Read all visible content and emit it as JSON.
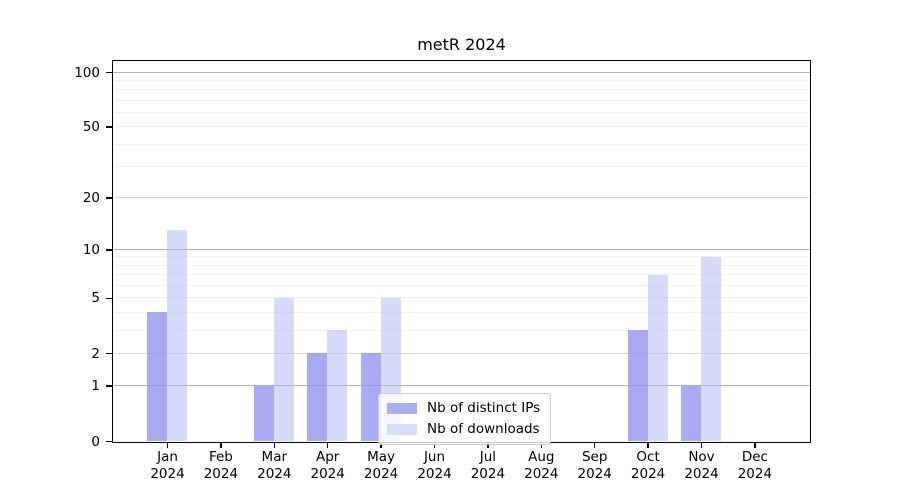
{
  "chart_data": {
    "type": "bar",
    "title": "metR 2024",
    "year": "2024",
    "categories": [
      "Jan",
      "Feb",
      "Mar",
      "Apr",
      "May",
      "Jun",
      "Jul",
      "Aug",
      "Sep",
      "Oct",
      "Nov",
      "Dec"
    ],
    "series": [
      {
        "name": "Nb of distinct IPs",
        "color": "#aaabf2",
        "bar_rgba": "rgba(150,151,238,0.82)",
        "values": [
          4,
          0,
          1,
          2,
          2,
          0,
          0,
          0,
          0,
          3,
          1,
          0
        ]
      },
      {
        "name": "Nb of downloads",
        "color": "#d9dbf9",
        "bar_rgba": "rgba(178,181,243,0.5)",
        "values": [
          13,
          0,
          5,
          3,
          5,
          0,
          0,
          0,
          0,
          7,
          9,
          0
        ]
      }
    ],
    "xlabel": "",
    "ylabel": "",
    "yscale": "log1p",
    "ylim": [
      0,
      115
    ],
    "yticks": [
      0,
      1,
      2,
      5,
      10,
      20,
      50,
      100
    ],
    "yticks_minor": [
      3,
      4,
      6,
      7,
      8,
      9,
      30,
      40,
      60,
      70,
      80,
      90
    ],
    "grid": "horizontal",
    "legend_position": "lower-center-inside",
    "gridline_colors": {
      "strong": "#b2b2b2",
      "medium": "#d8d8d8",
      "light": "#ededed",
      "minor": "#f2f2f2"
    },
    "strong_gridlines": [
      1,
      10,
      100
    ],
    "medium_gridlines": [
      2,
      20
    ],
    "light_gridlines": [
      5,
      50
    ]
  }
}
